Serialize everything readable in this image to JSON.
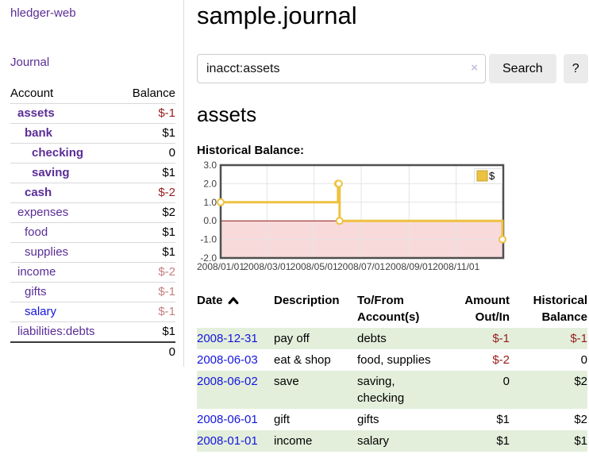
{
  "app_title": "hledger-web",
  "sidebar": {
    "journal_link": "Journal",
    "accounts": {
      "header": {
        "account": "Account",
        "balance": "Balance"
      },
      "rows": [
        {
          "name": "assets",
          "balance": "$-1",
          "depth": 1,
          "bold": true,
          "balance_class": "neg"
        },
        {
          "name": "bank",
          "balance": "$1",
          "depth": 2,
          "bold": true,
          "balance_class": ""
        },
        {
          "name": "checking",
          "balance": "0",
          "depth": 3,
          "bold": true,
          "balance_class": ""
        },
        {
          "name": "saving",
          "balance": "$1",
          "depth": 3,
          "bold": true,
          "balance_class": ""
        },
        {
          "name": "cash",
          "balance": "$-2",
          "depth": 2,
          "bold": true,
          "balance_class": "neg"
        },
        {
          "name": "expenses",
          "balance": "$2",
          "depth": 1,
          "bold": false,
          "balance_class": ""
        },
        {
          "name": "food",
          "balance": "$1",
          "depth": 2,
          "bold": false,
          "balance_class": ""
        },
        {
          "name": "supplies",
          "balance": "$1",
          "depth": 2,
          "bold": false,
          "balance_class": ""
        },
        {
          "name": "income",
          "balance": "$-2",
          "depth": 1,
          "bold": false,
          "balance_class": "faint"
        },
        {
          "name": "gifts",
          "balance": "$-1",
          "depth": 2,
          "bold": false,
          "balance_class": "faint"
        },
        {
          "name": "salary",
          "balance": "$-1",
          "depth": 2,
          "bold": false,
          "balance_class": "faint",
          "blue": true
        },
        {
          "name": "liabilities:debts",
          "balance": "$1",
          "depth": 1,
          "bold": false,
          "balance_class": ""
        }
      ],
      "total": "0"
    }
  },
  "header": {
    "title": "sample.journal"
  },
  "search": {
    "value": "inacct:assets",
    "clear_label": "×",
    "button_label": "Search",
    "help_label": "?"
  },
  "account_view": {
    "heading": "assets",
    "chart_heading": "Historical Balance:"
  },
  "chart_data": {
    "type": "line",
    "step": true,
    "title": "Historical Balance:",
    "xlabel": "",
    "ylabel": "",
    "xlim": [
      "2008-01-01",
      "2009-01-01"
    ],
    "ylim": [
      -2,
      3
    ],
    "y_ticks": [
      3,
      2,
      1,
      0,
      -1,
      -2
    ],
    "x_ticks": [
      {
        "date": "2008-01-01",
        "label": "2008/01/01"
      },
      {
        "date": "2008-03-01",
        "label": "2008/03/01"
      },
      {
        "date": "2008-05-01",
        "label": "2008/05/01"
      },
      {
        "date": "2008-07-01",
        "label": "2008/07/01"
      },
      {
        "date": "2008-09-01",
        "label": "2008/09/01"
      },
      {
        "date": "2008-11-01",
        "label": "2008/11/01"
      }
    ],
    "series": [
      {
        "name": "$",
        "color": "#edc240",
        "points": [
          [
            "2008-01-01",
            1
          ],
          [
            "2008-06-01",
            2
          ],
          [
            "2008-06-02",
            2
          ],
          [
            "2008-06-03",
            0
          ],
          [
            "2008-12-31",
            -1
          ]
        ]
      }
    ],
    "legend_position": "top-right",
    "grid": true,
    "negative_region_color": "#f9dada",
    "zero_line_color": "#8e1616"
  },
  "register": {
    "columns": [
      {
        "label": "Date",
        "sort": "asc"
      },
      {
        "label": "Description"
      },
      {
        "label": "To/From Account(s)"
      },
      {
        "label": "Amount Out/In"
      },
      {
        "label": "Historical Balance"
      }
    ],
    "rows": [
      {
        "date": "2008-12-31",
        "description": "pay off",
        "accounts": "debts",
        "amount": "$-1",
        "amount_class": "neg",
        "balance": "$-1",
        "balance_class": "neg"
      },
      {
        "date": "2008-06-03",
        "description": "eat & shop",
        "accounts": "food, supplies",
        "amount": "$-2",
        "amount_class": "neg",
        "balance": "0",
        "balance_class": ""
      },
      {
        "date": "2008-06-02",
        "description": "save",
        "accounts": "saving, checking",
        "amount": "0",
        "amount_class": "",
        "balance": "$2",
        "balance_class": ""
      },
      {
        "date": "2008-06-01",
        "description": "gift",
        "accounts": "gifts",
        "amount": "$1",
        "amount_class": "",
        "balance": "$2",
        "balance_class": ""
      },
      {
        "date": "2008-01-01",
        "description": "income",
        "accounts": "salary",
        "amount": "$1",
        "amount_class": "",
        "balance": "$1",
        "balance_class": ""
      }
    ]
  },
  "colors": {
    "link_purple": "#5b2d96",
    "link_blue": "#1515dd",
    "negative_strong": "#951d1d",
    "negative_faint": "#c67f7f",
    "row_stripe_green": "#e3efdb",
    "chart_line_gold": "#edc240",
    "button_gray": "#ebebeb"
  }
}
